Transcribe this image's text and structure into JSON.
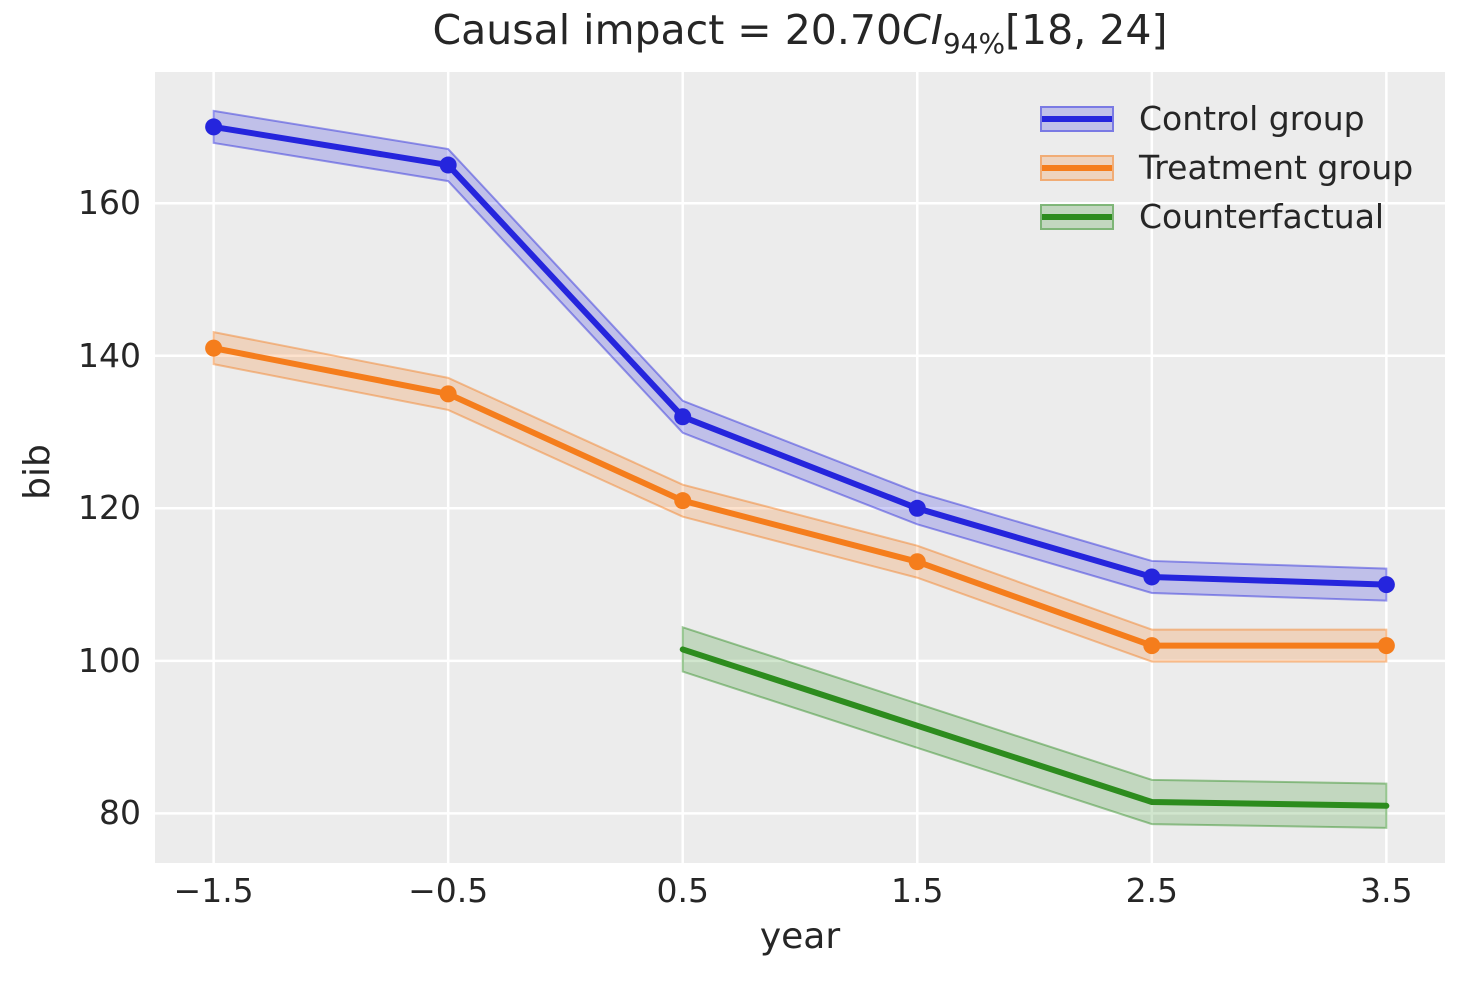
{
  "chart_data": {
    "type": "line",
    "title": {
      "prefix": "Causal impact = 20.70",
      "ci_label": "CI",
      "ci_subscript": "94%",
      "interval": "[18, 24]",
      "full_text": "Causal impact = 20.70CI94%[18, 24]"
    },
    "xlabel": "year",
    "ylabel": "bib",
    "xlim": [
      -1.75,
      3.75
    ],
    "ylim": [
      73.5,
      177.2
    ],
    "xticks": [
      -1.5,
      -0.5,
      0.5,
      1.5,
      2.5,
      3.5
    ],
    "xtick_labels": [
      "−1.5",
      "−0.5",
      "0.5",
      "1.5",
      "2.5",
      "3.5"
    ],
    "yticks": [
      80,
      100,
      120,
      140,
      160
    ],
    "ytick_labels": [
      "80",
      "100",
      "120",
      "140",
      "160"
    ],
    "grid": true,
    "legend_position": "upper right",
    "series": [
      {
        "name": "Control group",
        "slug": "control-group",
        "color": "#2525dd",
        "x": [
          -1.5,
          -0.5,
          0.5,
          1.5,
          2.5,
          3.5
        ],
        "y": [
          170,
          165,
          132,
          120,
          111,
          110
        ],
        "band_halfwidth": 2.1,
        "markers": true
      },
      {
        "name": "Treatment group",
        "slug": "treatment-group",
        "color": "#f57d1c",
        "x": [
          -1.5,
          -0.5,
          0.5,
          1.5,
          2.5,
          3.5
        ],
        "y": [
          141,
          135,
          121,
          113,
          102,
          102
        ],
        "band_halfwidth": 2.1,
        "markers": true
      },
      {
        "name": "Counterfactual",
        "slug": "counterfactual",
        "color": "#2d8c1e",
        "x": [
          0.5,
          1.5,
          2.5,
          3.5
        ],
        "y": [
          101.5,
          91.5,
          81.5,
          81
        ],
        "band_halfwidth": 2.9,
        "markers": false
      }
    ],
    "colors": {
      "figure_background": "#ffffff",
      "axes_background": "#ececec",
      "gridline": "#ffffff",
      "text": "#262626"
    }
  }
}
